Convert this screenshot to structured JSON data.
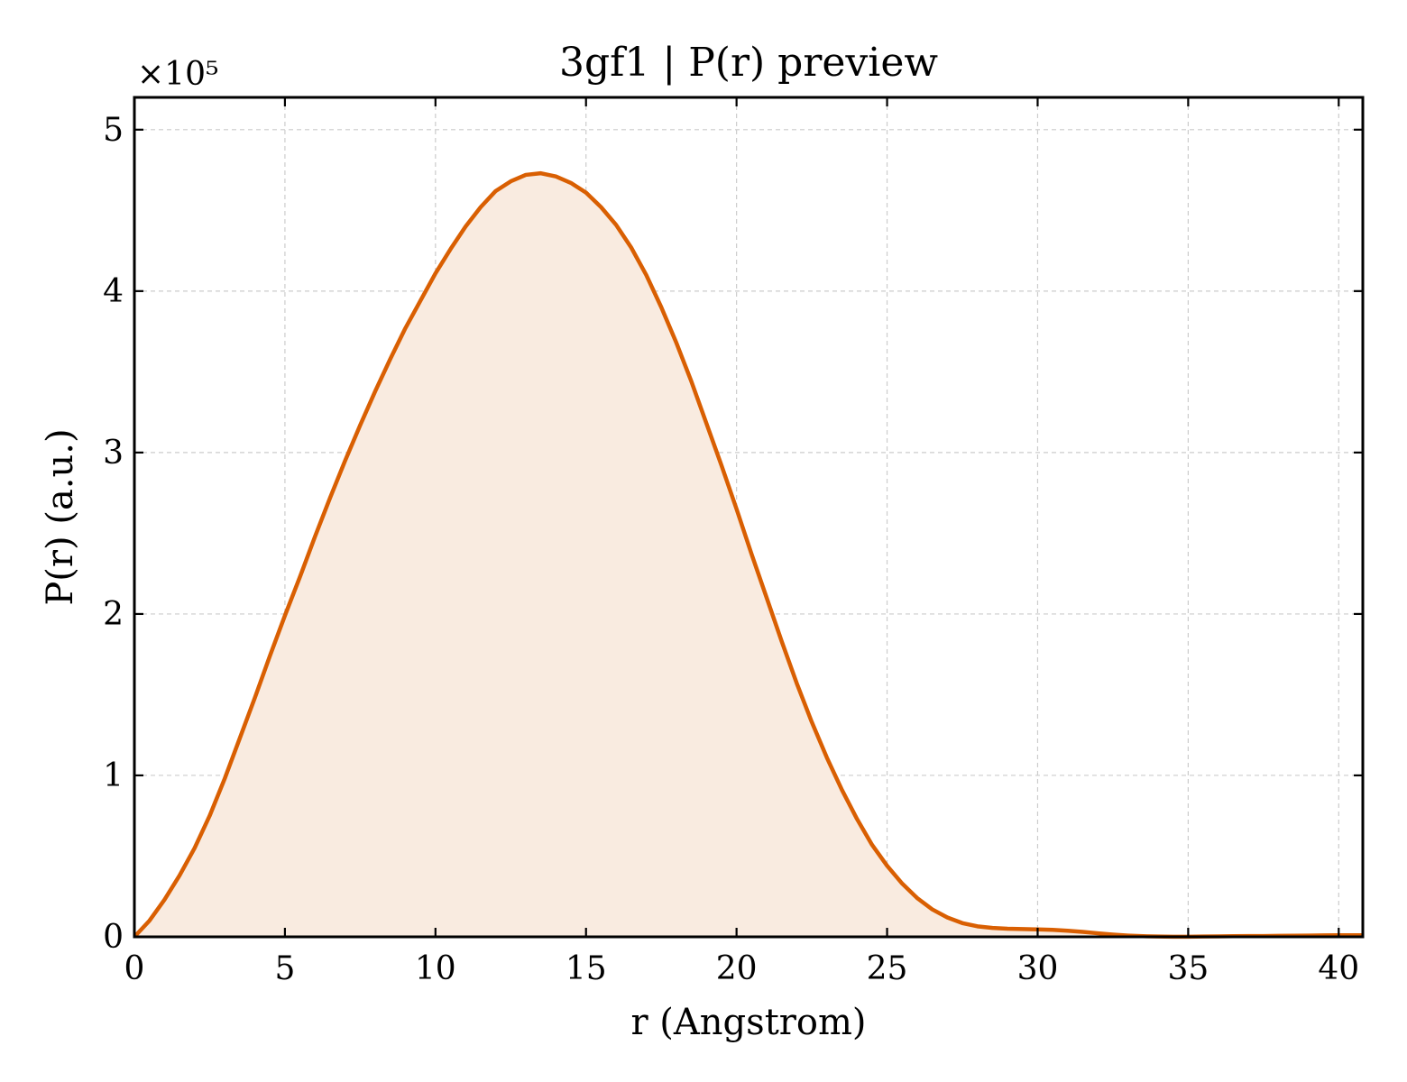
{
  "chart_data": {
    "type": "area",
    "title": "3gf1 | P(r) preview",
    "xlabel": "r (Angstrom)",
    "ylabel": "P(r) (a.u.)",
    "y_multiplier_label": "×10⁵",
    "y_multiplier": 100000,
    "xlim": [
      0,
      40.8
    ],
    "ylim": [
      0,
      520000
    ],
    "xticks": [
      0,
      5,
      10,
      15,
      20,
      25,
      30,
      35,
      40
    ],
    "yticks": [
      0,
      100000,
      200000,
      300000,
      400000,
      500000
    ],
    "ytick_labels": [
      "0",
      "1",
      "2",
      "3",
      "4",
      "5"
    ],
    "grid": true,
    "legend": "none",
    "series": [
      {
        "color": "#d95f02",
        "fill_color": "#f9ebe0",
        "x": [
          0,
          0.5,
          1,
          1.5,
          2,
          2.5,
          3,
          3.5,
          4,
          4.5,
          5,
          5.5,
          6,
          6.5,
          7,
          7.5,
          8,
          8.5,
          9,
          9.5,
          10,
          10.5,
          11,
          11.5,
          12,
          12.5,
          13,
          13.5,
          14,
          14.5,
          15,
          15.5,
          16,
          16.5,
          17,
          17.5,
          18,
          18.5,
          19,
          19.5,
          20,
          20.5,
          21,
          21.5,
          22,
          22.5,
          23,
          23.5,
          24,
          24.5,
          25,
          25.5,
          26,
          26.5,
          27,
          27.5,
          28,
          28.5,
          29,
          29.5,
          30,
          30.5,
          31,
          31.5,
          32,
          32.5,
          33,
          33.5,
          34,
          34.5,
          35,
          35.5,
          36,
          36.5,
          37,
          37.5,
          38,
          38.5,
          39,
          39.5,
          40,
          40.5
        ],
        "y": [
          0,
          10000,
          23000,
          38000,
          55000,
          75000,
          98000,
          123000,
          148000,
          174000,
          199000,
          223000,
          248000,
          272000,
          295000,
          317000,
          338000,
          358000,
          377000,
          394000,
          411000,
          426000,
          440000,
          452000,
          462000,
          468000,
          472000,
          473000,
          471000,
          467000,
          461000,
          452000,
          441000,
          427000,
          410000,
          390000,
          368000,
          344000,
          318000,
          292000,
          265000,
          237000,
          210000,
          183000,
          157000,
          133000,
          111000,
          91000,
          73000,
          57000,
          44000,
          33000,
          24000,
          17000,
          12000,
          8500,
          6500,
          5500,
          5000,
          4800,
          4600,
          4300,
          3800,
          3100,
          2200,
          1400,
          800,
          400,
          200,
          100,
          100,
          200,
          300,
          400,
          500,
          500,
          600,
          700,
          800,
          900,
          1000,
          1000
        ]
      }
    ]
  }
}
